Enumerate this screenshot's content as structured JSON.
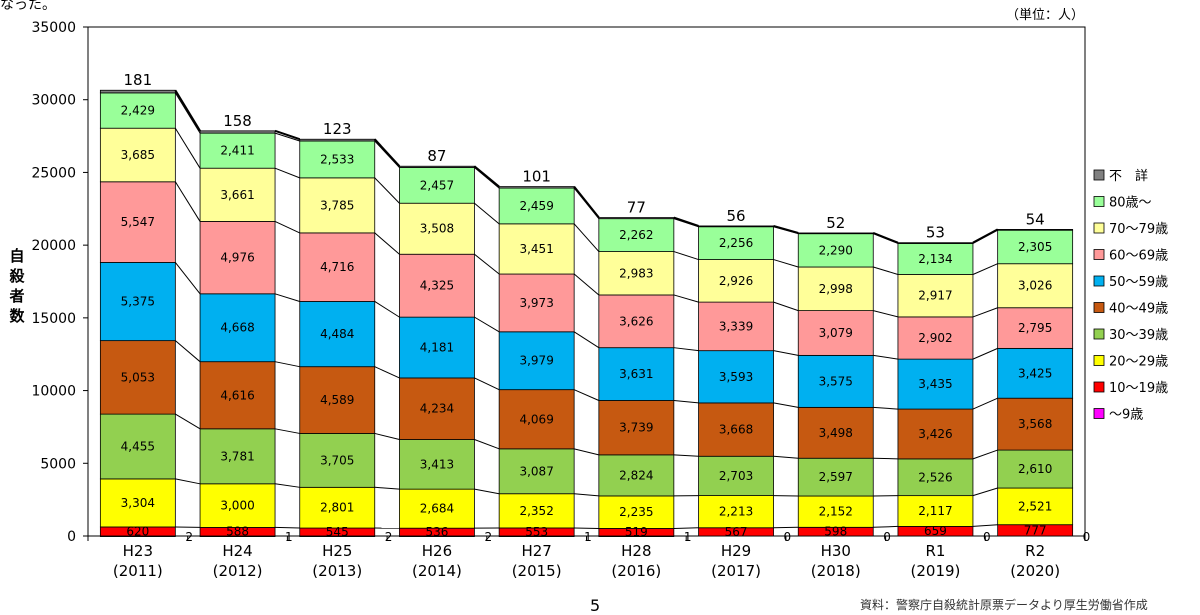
{
  "page": {
    "top_fragment": "なった。",
    "unit_label": "（単位：人）",
    "y_axis_title": "自殺者数",
    "page_number": "5",
    "source_note": "資料：警察庁自殺統計原票データより厚生労働省作成"
  },
  "chart_data": {
    "type": "bar",
    "stacked": true,
    "ylabel": "自殺者数",
    "ylim": [
      0,
      35000
    ],
    "yticks": [
      0,
      5000,
      10000,
      15000,
      20000,
      25000,
      30000,
      35000
    ],
    "grid": false,
    "legend_position": "right",
    "categories": [
      {
        "line1": "H23",
        "line2": "(2011)"
      },
      {
        "line1": "H24",
        "line2": "(2012)"
      },
      {
        "line1": "H25",
        "line2": "(2013)"
      },
      {
        "line1": "H26",
        "line2": "(2014)"
      },
      {
        "line1": "H27",
        "line2": "(2015)"
      },
      {
        "line1": "H28",
        "line2": "(2016)"
      },
      {
        "line1": "H29",
        "line2": "(2017)"
      },
      {
        "line1": "H30",
        "line2": "(2018)"
      },
      {
        "line1": "R1",
        "line2": "(2019)"
      },
      {
        "line1": "R2",
        "line2": "(2020)"
      }
    ],
    "series": [
      {
        "name": "～9歳",
        "color": "#ff00ff",
        "values": [
          2,
          1,
          2,
          2,
          1,
          1,
          0,
          0,
          0,
          0
        ]
      },
      {
        "name": "10～19歳",
        "color": "#ff0000",
        "values": [
          620,
          588,
          545,
          536,
          553,
          519,
          567,
          598,
          659,
          777
        ]
      },
      {
        "name": "20～29歳",
        "color": "#ffff00",
        "values": [
          3304,
          3000,
          2801,
          2684,
          2352,
          2235,
          2213,
          2152,
          2117,
          2521
        ]
      },
      {
        "name": "30～39歳",
        "color": "#92d050",
        "values": [
          4455,
          3781,
          3705,
          3413,
          3087,
          2824,
          2703,
          2597,
          2526,
          2610
        ]
      },
      {
        "name": "40～49歳",
        "color": "#c65911",
        "values": [
          5053,
          4616,
          4589,
          4234,
          4069,
          3739,
          3668,
          3498,
          3426,
          3568
        ]
      },
      {
        "name": "50～59歳",
        "color": "#00b0f0",
        "values": [
          5375,
          4668,
          4484,
          4181,
          3979,
          3631,
          3593,
          3575,
          3435,
          3425
        ]
      },
      {
        "name": "60～69歳",
        "color": "#ff9999",
        "values": [
          5547,
          4976,
          4716,
          4325,
          3973,
          3626,
          3339,
          3079,
          2902,
          2795
        ]
      },
      {
        "name": "70～79歳",
        "color": "#ffff99",
        "values": [
          3685,
          3661,
          3785,
          3508,
          3451,
          2983,
          2926,
          2998,
          2917,
          3026
        ]
      },
      {
        "name": "80歳～",
        "color": "#99ff99",
        "values": [
          2429,
          2411,
          2533,
          2457,
          2459,
          2262,
          2256,
          2290,
          2134,
          2305
        ]
      },
      {
        "name": "不　詳",
        "color": "#808080",
        "values": [
          181,
          158,
          123,
          87,
          101,
          77,
          56,
          52,
          53,
          54
        ]
      }
    ],
    "segment_labels": [
      [
        "2",
        "620",
        "3,304",
        "4,455",
        "5,053",
        "5,375",
        "5,547",
        "3,685",
        "2,429",
        "181"
      ],
      [
        "1",
        "588",
        "3,000",
        "3,781",
        "4,616",
        "4,668",
        "4,976",
        "3,661",
        "2,411",
        "158"
      ],
      [
        "2",
        "545",
        "2,801",
        "3,705",
        "4,589",
        "4,484",
        "4,716",
        "3,785",
        "2,533",
        "123"
      ],
      [
        "2",
        "536",
        "2,684",
        "3,413",
        "4,234",
        "4,181",
        "4,325",
        "3,508",
        "2,457",
        "87"
      ],
      [
        "1",
        "553",
        "2,352",
        "3,087",
        "4,069",
        "3,979",
        "3,973",
        "3,451",
        "2,459",
        "101"
      ],
      [
        "1",
        "519",
        "2,235",
        "2,824",
        "3,739",
        "3,631",
        "3,626",
        "2,983",
        "2,262",
        "77"
      ],
      [
        "0",
        "567",
        "2,213",
        "2,703",
        "3,668",
        "3,593",
        "3,339",
        "2,926",
        "2,256",
        "56"
      ],
      [
        "0",
        "598",
        "2,152",
        "2,597",
        "3,498",
        "3,575",
        "3,079",
        "2,998",
        "2,290",
        "52"
      ],
      [
        "0",
        "659",
        "2,117",
        "2,526",
        "3,426",
        "3,435",
        "2,902",
        "2,917",
        "2,134",
        "53"
      ],
      [
        "0",
        "777",
        "2,521",
        "2,610",
        "3,568",
        "3,425",
        "2,795",
        "3,026",
        "2,305",
        "54"
      ]
    ]
  }
}
